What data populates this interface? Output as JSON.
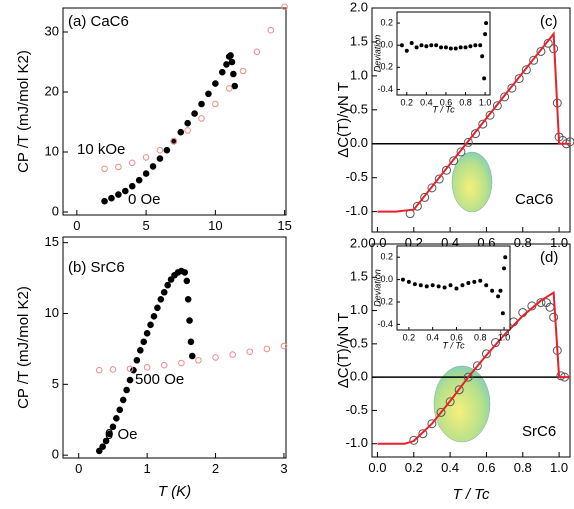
{
  "chart_data": [
    {
      "type": "scatter",
      "ylabel": "CP /T (mJ/mol K2)",
      "xlim": [
        -1,
        15.1
      ],
      "ylim": [
        -0.5,
        34
      ],
      "xticks": [
        0,
        5,
        10,
        15
      ],
      "yticks": [
        0,
        10,
        20,
        30
      ],
      "annotations": [
        {
          "text": "(a) CaC6",
          "color": "#000000"
        },
        {
          "text": "10 kOe",
          "color": "#e8202a"
        },
        {
          "text": "0 Oe",
          "color": "#000000"
        }
      ],
      "series": [
        {
          "name": "0 Oe",
          "color": "#000000",
          "marker": "filled",
          "x": [
            2,
            2.5,
            3,
            3.5,
            4,
            4.5,
            5,
            5.5,
            6,
            6.5,
            7,
            7.5,
            8,
            8.5,
            9,
            9.5,
            10,
            10.5,
            10.8,
            11,
            11.1,
            11.2,
            11.3,
            11.4
          ],
          "values": [
            1.8,
            2.3,
            2.9,
            3.5,
            4.3,
            5.3,
            6.4,
            7.6,
            8.9,
            10.3,
            11.8,
            13.3,
            14.8,
            16.4,
            18.0,
            19.7,
            21.4,
            23.3,
            24.6,
            25.9,
            26.1,
            25.0,
            23.0,
            21.0
          ]
        },
        {
          "name": "10 kOe",
          "color": "#f08a8a",
          "marker": "open",
          "x": [
            2,
            3,
            4,
            5,
            6,
            7,
            8,
            9,
            10,
            11,
            12,
            13,
            14,
            15
          ],
          "values": [
            7.2,
            7.5,
            8.2,
            9.1,
            10.3,
            11.8,
            13.6,
            15.6,
            18.0,
            20.6,
            23.5,
            26.7,
            30.3,
            34.2
          ]
        }
      ]
    },
    {
      "type": "scatter",
      "ylabel": "CP /T (mJ/mol K2)",
      "xlabel": "T (K)",
      "xlim": [
        -0.23,
        3.03
      ],
      "ylim": [
        -0.2,
        15.4
      ],
      "xticks": [
        0,
        1,
        2,
        3
      ],
      "yticks": [
        0,
        5,
        10,
        15
      ],
      "annotations": [
        {
          "text": "(b) SrC6",
          "color": "#000000"
        },
        {
          "text": "500 Oe",
          "color": "#e8202a"
        },
        {
          "text": "0 Oe",
          "color": "#000000"
        }
      ],
      "series": [
        {
          "name": "0 Oe",
          "color": "#000000",
          "marker": "filled",
          "x": [
            0.3,
            0.35,
            0.4,
            0.45,
            0.5,
            0.55,
            0.6,
            0.65,
            0.7,
            0.75,
            0.8,
            0.85,
            0.9,
            0.95,
            1.0,
            1.05,
            1.1,
            1.15,
            1.2,
            1.25,
            1.3,
            1.35,
            1.4,
            1.45,
            1.5,
            1.55,
            1.58,
            1.6,
            1.62,
            1.64,
            1.66
          ],
          "values": [
            0.3,
            0.6,
            1.0,
            1.5,
            2.0,
            2.6,
            3.2,
            3.9,
            4.6,
            5.3,
            6.0,
            6.7,
            7.4,
            8.0,
            8.6,
            9.2,
            9.8,
            10.4,
            11.0,
            11.5,
            12.0,
            12.4,
            12.7,
            12.9,
            13.0,
            12.9,
            12.3,
            11.0,
            9.5,
            8.0,
            7.0
          ]
        },
        {
          "name": "500 Oe",
          "color": "#f08a8a",
          "marker": "open",
          "x": [
            0.3,
            0.5,
            0.75,
            1,
            1.25,
            1.5,
            1.75,
            2,
            2.25,
            2.5,
            2.75,
            3
          ],
          "values": [
            6.0,
            6.05,
            6.1,
            6.2,
            6.35,
            6.5,
            6.7,
            6.9,
            7.1,
            7.3,
            7.5,
            7.7
          ]
        }
      ]
    },
    {
      "type": "line",
      "ylabel": "ΔC(T)/γN T",
      "zero_line": true,
      "xlim": [
        -0.03,
        1.06
      ],
      "ylim": [
        -1.3,
        2.0
      ],
      "xticks": [
        {
          "value": 0,
          "label": "0.0"
        },
        {
          "value": 0.2,
          "label": "0.2"
        },
        {
          "value": 0.4,
          "label": "0.4"
        },
        {
          "value": 0.6,
          "label": "0.6"
        },
        {
          "value": 0.8,
          "label": "0.8"
        },
        {
          "value": 1,
          "label": "1.0"
        }
      ],
      "yticks": [
        {
          "value": -1,
          "label": "-1.0"
        },
        {
          "value": -0.5,
          "label": "-0.5"
        },
        {
          "value": 0,
          "label": "0.0"
        },
        {
          "value": 0.5,
          "label": "0.5"
        },
        {
          "value": 1,
          "label": "1.0"
        },
        {
          "value": 1.5,
          "label": "1.5"
        },
        {
          "value": 2,
          "label": "2.0"
        }
      ],
      "annotations": [
        {
          "text": "(c)",
          "color": "#000000"
        },
        {
          "text": "CaC6",
          "color": "#000000"
        }
      ],
      "series": [
        {
          "color": "#555555",
          "marker": "open",
          "x": [
            0.18,
            0.22,
            0.26,
            0.3,
            0.34,
            0.38,
            0.42,
            0.46,
            0.5,
            0.54,
            0.58,
            0.62,
            0.66,
            0.7,
            0.74,
            0.78,
            0.82,
            0.86,
            0.9,
            0.94,
            0.97,
            0.99,
            1.0,
            1.02,
            1.04,
            1.06
          ],
          "values": [
            -1.03,
            -0.92,
            -0.79,
            -0.65,
            -0.52,
            -0.39,
            -0.25,
            -0.12,
            0.02,
            0.15,
            0.29,
            0.42,
            0.56,
            0.69,
            0.82,
            0.96,
            1.09,
            1.23,
            1.36,
            1.48,
            1.4,
            0.6,
            0.1,
            0.05,
            0.0,
            0.03
          ]
        },
        {
          "color": "#e8202a",
          "marker": "none",
          "x": [
            0,
            0.1,
            0.2,
            0.97,
            1.0,
            1.06
          ],
          "values": [
            -1,
            -1,
            -0.97,
            1.62,
            0,
            0
          ]
        }
      ]
    },
    {
      "type": "scatter",
      "ylabel": "Deviation",
      "xlabel": "T / Tc",
      "xlim": [
        0.1,
        1.05
      ],
      "ylim": [
        -0.45,
        0.3
      ],
      "xticks": [
        0.2,
        0.4,
        0.6,
        0.8,
        {
          "value": 1,
          "label": "1.0"
        }
      ],
      "yticks": [
        -0.4,
        -0.2,
        {
          "value": 0,
          "label": "0.0"
        },
        0.2
      ],
      "series": [
        {
          "color": "#000000",
          "marker": "filled",
          "x": [
            0.15,
            0.2,
            0.25,
            0.3,
            0.35,
            0.4,
            0.45,
            0.5,
            0.55,
            0.6,
            0.65,
            0.7,
            0.75,
            0.8,
            0.85,
            0.9,
            0.95,
            0.97,
            0.99,
            1.0,
            1.01
          ],
          "values": [
            0.0,
            -0.05,
            0.02,
            -0.02,
            0.0,
            -0.01,
            0.0,
            0.0,
            -0.02,
            -0.02,
            -0.03,
            -0.03,
            -0.02,
            -0.02,
            -0.01,
            0.0,
            0.0,
            -0.1,
            -0.3,
            0.1,
            0.2
          ]
        }
      ]
    },
    {
      "type": "line",
      "ylabel": "ΔC(T)/γN T",
      "xlabel": "T / Tc",
      "zero_line": true,
      "xlim": [
        -0.03,
        1.06
      ],
      "ylim": [
        -1.2,
        2.0
      ],
      "xticks": [
        {
          "value": 0,
          "label": "0.0"
        },
        {
          "value": 0.2,
          "label": "0.2"
        },
        {
          "value": 0.4,
          "label": "0.4"
        },
        {
          "value": 0.6,
          "label": "0.6"
        },
        {
          "value": 0.8,
          "label": "0.8"
        },
        {
          "value": 1,
          "label": "1.0"
        }
      ],
      "yticks": [
        {
          "value": -1,
          "label": "-1.0"
        },
        {
          "value": -0.5,
          "label": "-0.5"
        },
        {
          "value": 0,
          "label": "0.0"
        },
        {
          "value": 0.5,
          "label": "0.5"
        },
        {
          "value": 1,
          "label": "1.0"
        },
        {
          "value": 1.5,
          "label": "1.5"
        },
        {
          "value": 2,
          "label": "2.0"
        }
      ],
      "annotations": [
        {
          "text": "(d)",
          "color": "#000000"
        },
        {
          "text": "SrC6",
          "color": "#000000"
        }
      ],
      "series": [
        {
          "color": "#555555",
          "marker": "open",
          "x": [
            0.2,
            0.25,
            0.3,
            0.35,
            0.4,
            0.45,
            0.5,
            0.55,
            0.6,
            0.65,
            0.7,
            0.75,
            0.8,
            0.85,
            0.9,
            0.93,
            0.95,
            0.97,
            0.99,
            1.01,
            1.03
          ],
          "values": [
            -0.95,
            -0.85,
            -0.7,
            -0.53,
            -0.37,
            -0.19,
            0.0,
            0.17,
            0.35,
            0.52,
            0.68,
            0.83,
            0.97,
            1.07,
            1.12,
            1.12,
            1.05,
            0.9,
            0.4,
            0.02,
            0.0
          ]
        },
        {
          "color": "#e8202a",
          "marker": "none",
          "x": [
            0,
            0.15,
            0.2,
            0.3,
            0.4,
            0.5,
            0.6,
            0.7,
            0.8,
            0.9,
            0.97,
            1.0,
            1.06
          ],
          "values": [
            -1,
            -1,
            -0.96,
            -0.7,
            -0.36,
            0.0,
            0.33,
            0.64,
            0.92,
            1.15,
            1.27,
            0.0,
            0.0
          ]
        }
      ]
    },
    {
      "type": "scatter",
      "ylabel": "Deviation",
      "xlabel": "T / Tc",
      "xlim": [
        0.1,
        1.05
      ],
      "ylim": [
        -0.45,
        0.3
      ],
      "xticks": [
        0.2,
        0.4,
        0.6,
        0.8,
        {
          "value": 1,
          "label": "1.0"
        }
      ],
      "yticks": [
        -0.4,
        -0.2,
        {
          "value": 0,
          "label": "0.0"
        },
        0.2
      ],
      "series": [
        {
          "color": "#000000",
          "marker": "filled",
          "x": [
            0.15,
            0.2,
            0.25,
            0.3,
            0.35,
            0.4,
            0.45,
            0.5,
            0.55,
            0.6,
            0.65,
            0.7,
            0.75,
            0.8,
            0.85,
            0.9,
            0.95,
            0.97,
            0.99,
            1.0,
            1.01
          ],
          "values": [
            0.0,
            -0.02,
            -0.04,
            -0.05,
            -0.06,
            -0.05,
            -0.06,
            -0.07,
            -0.05,
            -0.08,
            -0.05,
            -0.03,
            -0.02,
            -0.01,
            -0.05,
            -0.1,
            -0.15,
            -0.1,
            -0.3,
            0.1,
            0.2
          ]
        }
      ]
    }
  ]
}
